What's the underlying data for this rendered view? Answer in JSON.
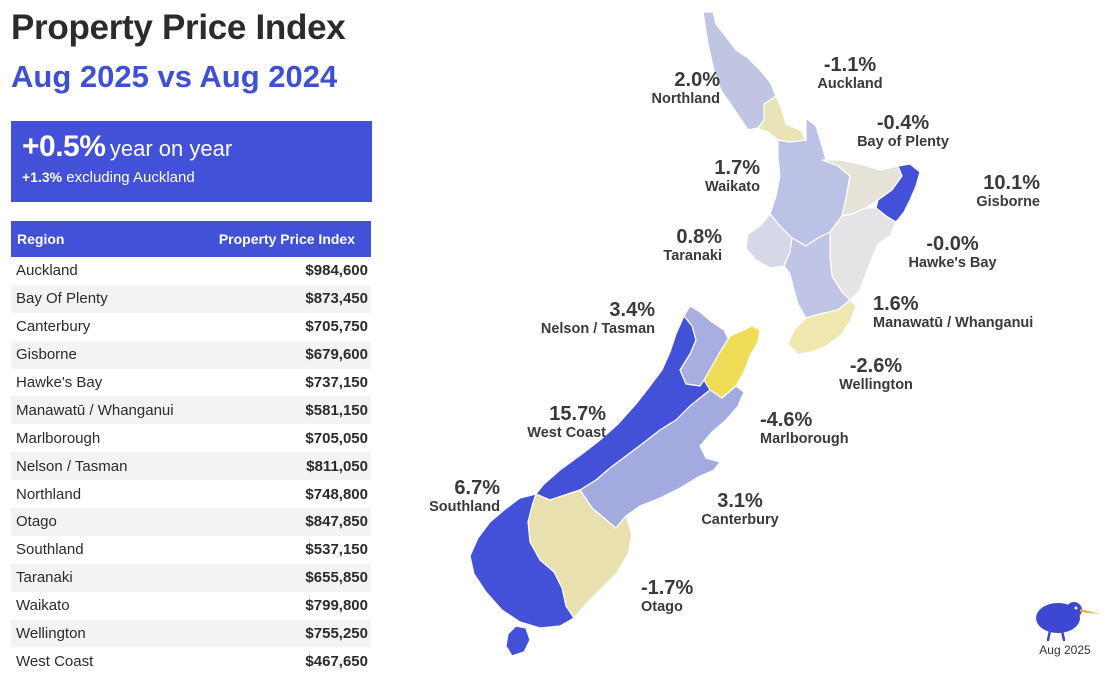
{
  "header": {
    "title": "Property Price Index",
    "subtitle": "Aug 2025 vs Aug 2024"
  },
  "summary": {
    "headline_value": "+0.5%",
    "headline_text": "year on year",
    "sub_value": "+1.3%",
    "sub_text": "excluding Auckland"
  },
  "table": {
    "columns": [
      "Region",
      "Property Price Index"
    ],
    "rows": [
      {
        "region": "Auckland",
        "value": "$984,600"
      },
      {
        "region": "Bay Of Plenty",
        "value": "$873,450"
      },
      {
        "region": "Canterbury",
        "value": "$705,750"
      },
      {
        "region": "Gisborne",
        "value": "$679,600"
      },
      {
        "region": "Hawke's Bay",
        "value": "$737,150"
      },
      {
        "region": "Manawatū / Whanganui",
        "value": "$581,150"
      },
      {
        "region": "Marlborough",
        "value": "$705,050"
      },
      {
        "region": "Nelson / Tasman",
        "value": "$811,050"
      },
      {
        "region": "Northland",
        "value": "$748,800"
      },
      {
        "region": "Otago",
        "value": "$847,850"
      },
      {
        "region": "Southland",
        "value": "$537,150"
      },
      {
        "region": "Taranaki",
        "value": "$655,850"
      },
      {
        "region": "Waikato",
        "value": "$799,800"
      },
      {
        "region": "Wellington",
        "value": "$755,250"
      },
      {
        "region": "West Coast",
        "value": "$467,650"
      }
    ]
  },
  "map": {
    "regions": [
      {
        "name": "Northland",
        "change": "2.0%",
        "color": "#c1c5e4"
      },
      {
        "name": "Auckland",
        "change": "-1.1%",
        "color": "#ebe3b8"
      },
      {
        "name": "Bay of Plenty",
        "change": "-0.4%",
        "color": "#e6e2d8"
      },
      {
        "name": "Waikato",
        "change": "1.7%",
        "color": "#bcc2e6"
      },
      {
        "name": "Gisborne",
        "change": "10.1%",
        "color": "#4350d8"
      },
      {
        "name": "Taranaki",
        "change": "0.8%",
        "color": "#d6d8e8"
      },
      {
        "name": "Hawke's Bay",
        "change": "-0.0%",
        "color": "#e4e4e6"
      },
      {
        "name": "Manawatū / Whanganui",
        "change": "1.6%",
        "color": "#c0c5e6"
      },
      {
        "name": "Nelson / Tasman",
        "change": "3.4%",
        "color": "#a8aee0"
      },
      {
        "name": "Wellington",
        "change": "-2.6%",
        "color": "#efe6b0"
      },
      {
        "name": "West Coast",
        "change": "15.7%",
        "color": "#4350d8"
      },
      {
        "name": "Marlborough",
        "change": "-4.6%",
        "color": "#f0dc56"
      },
      {
        "name": "Southland",
        "change": "6.7%",
        "color": "#4350d8"
      },
      {
        "name": "Canterbury",
        "change": "3.1%",
        "color": "#a3aadf"
      },
      {
        "name": "Otago",
        "change": "-1.7%",
        "color": "#e9e0b0"
      }
    ]
  },
  "logo": {
    "caption": "Aug 2025",
    "icon": "kiwi-bird-icon"
  },
  "colors": {
    "accent": "#4350d8",
    "title": "#2b2b2b"
  }
}
